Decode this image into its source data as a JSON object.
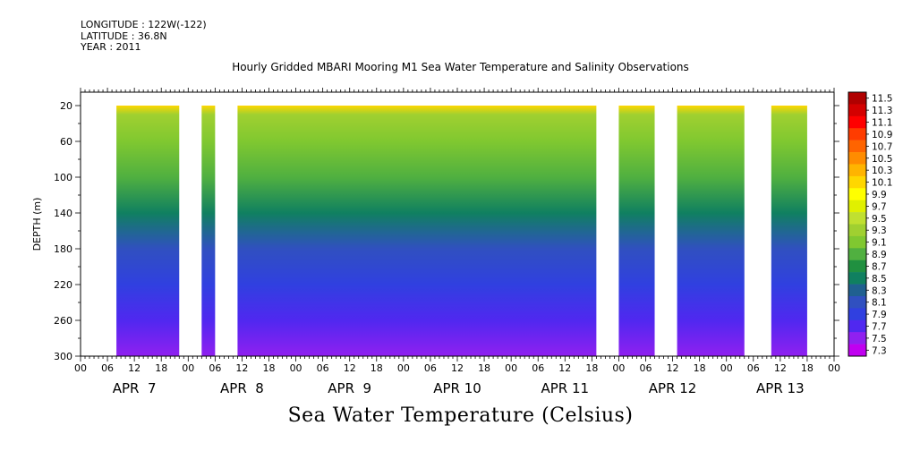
{
  "meta": {
    "longitude": "LONGITUDE : 122W(-122)",
    "latitude": "LATITUDE : 36.8N",
    "year": "YEAR : 2011"
  },
  "title": "Hourly Gridded MBARI Mooring M1 Sea Water Temperature and Salinity Observations",
  "caption": "Sea Water Temperature (Celsius)",
  "chart_data": {
    "type": "heatmap",
    "ylabel": "DEPTH (m)",
    "y_reversed": true,
    "ylim": [
      300,
      5
    ],
    "y_ticks": [
      20,
      60,
      100,
      140,
      180,
      220,
      260,
      300
    ],
    "x_hour_range": [
      0,
      168
    ],
    "x_hour_ticks": [
      "00",
      "06",
      "12",
      "18",
      "00",
      "06",
      "12",
      "18",
      "00",
      "06",
      "12",
      "18",
      "00",
      "06",
      "12",
      "18",
      "00",
      "06",
      "12",
      "18",
      "00",
      "06",
      "12",
      "18",
      "00",
      "06",
      "12",
      "18",
      "00"
    ],
    "x_day_labels": [
      "APR  7",
      "APR  8",
      "APR  9",
      "APR 10",
      "APR 11",
      "APR 12",
      "APR 13"
    ],
    "data_segments_hours": [
      [
        8,
        22
      ],
      [
        27,
        30
      ],
      [
        35,
        115
      ],
      [
        120,
        128
      ],
      [
        133,
        148
      ],
      [
        154,
        162
      ]
    ],
    "colorbar_levels": [
      "11.5",
      "11.3",
      "11.1",
      "10.9",
      "10.7",
      "10.5",
      "10.3",
      "10.1",
      "9.9",
      "9.7",
      "9.5",
      "9.3",
      "9.1",
      "8.9",
      "8.7",
      "8.5",
      "8.3",
      "8.1",
      "7.9",
      "7.7",
      "7.5",
      "7.3"
    ],
    "colorbar_colors": [
      "#b00000",
      "#d40000",
      "#ff0000",
      "#ff3c00",
      "#ff6400",
      "#ff8c00",
      "#ffb400",
      "#ffd700",
      "#ffff00",
      "#e0f000",
      "#c0e030",
      "#a0d030",
      "#80c830",
      "#50b040",
      "#209040",
      "#108060",
      "#206090",
      "#3050c0",
      "#3040e0",
      "#5028f0",
      "#9020f0",
      "#c000f0"
    ],
    "temperature_profile": [
      {
        "depth": 20,
        "value": 10.1
      },
      {
        "depth": 30,
        "value": 9.3
      },
      {
        "depth": 60,
        "value": 9.1
      },
      {
        "depth": 100,
        "value": 8.8
      },
      {
        "depth": 140,
        "value": 8.5
      },
      {
        "depth": 180,
        "value": 8.1
      },
      {
        "depth": 220,
        "value": 7.9
      },
      {
        "depth": 260,
        "value": 7.8
      },
      {
        "depth": 300,
        "value": 7.5
      }
    ],
    "units": "Celsius"
  }
}
